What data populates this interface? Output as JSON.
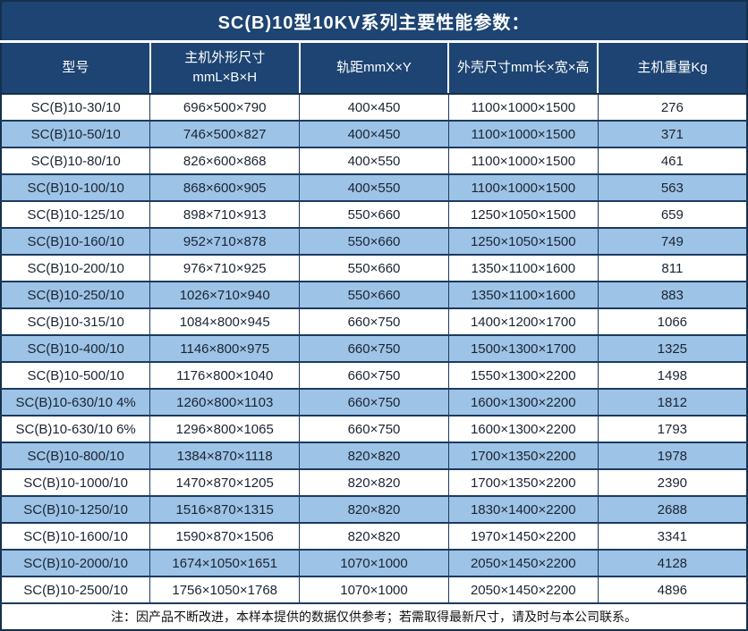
{
  "title": "SC(B)10型10KV系列主要性能参数：",
  "columns": {
    "model": "型号",
    "dims": "主机外形尺寸\nmmL×B×H",
    "track": "轨距mmX×Y",
    "shell": "外壳尺寸mm长×宽×高",
    "weight": "主机重量Kg"
  },
  "rows": [
    {
      "model": "SC(B)10-30/10",
      "dims": "696×500×790",
      "track": "400×450",
      "shell": "1100×1000×1500",
      "weight": "276"
    },
    {
      "model": "SC(B)10-50/10",
      "dims": "746×500×827",
      "track": "400×450",
      "shell": "1100×1000×1500",
      "weight": "371"
    },
    {
      "model": "SC(B)10-80/10",
      "dims": "826×600×868",
      "track": "400×550",
      "shell": "1100×1000×1500",
      "weight": "461"
    },
    {
      "model": "SC(B)10-100/10",
      "dims": "868×600×905",
      "track": "400×550",
      "shell": "1100×1000×1500",
      "weight": "563"
    },
    {
      "model": "SC(B)10-125/10",
      "dims": "898×710×913",
      "track": "550×660",
      "shell": "1250×1050×1500",
      "weight": "659"
    },
    {
      "model": "SC(B)10-160/10",
      "dims": "952×710×878",
      "track": "550×660",
      "shell": "1250×1050×1500",
      "weight": "749"
    },
    {
      "model": "SC(B)10-200/10",
      "dims": "976×710×925",
      "track": "550×660",
      "shell": "1350×1100×1600",
      "weight": "811"
    },
    {
      "model": "SC(B)10-250/10",
      "dims": "1026×710×940",
      "track": "550×660",
      "shell": "1350×1100×1600",
      "weight": "883"
    },
    {
      "model": "SC(B)10-315/10",
      "dims": "1084×800×945",
      "track": "660×750",
      "shell": "1400×1200×1700",
      "weight": "1066"
    },
    {
      "model": "SC(B)10-400/10",
      "dims": "1146×800×975",
      "track": "660×750",
      "shell": "1500×1300×1700",
      "weight": "1325"
    },
    {
      "model": "SC(B)10-500/10",
      "dims": "1176×800×1040",
      "track": "660×750",
      "shell": "1550×1300×2200",
      "weight": "1498"
    },
    {
      "model": "SC(B)10-630/10 4%",
      "dims": "1260×800×1103",
      "track": "660×750",
      "shell": "1600×1300×2200",
      "weight": "1812"
    },
    {
      "model": "SC(B)10-630/10 6%",
      "dims": "1296×800×1065",
      "track": "660×750",
      "shell": "1600×1300×2200",
      "weight": "1793"
    },
    {
      "model": "SC(B)10-800/10",
      "dims": "1384×870×1118",
      "track": "820×820",
      "shell": "1700×1350×2200",
      "weight": "1978"
    },
    {
      "model": "SC(B)10-1000/10",
      "dims": "1470×870×1205",
      "track": "820×820",
      "shell": "1700×1350×2200",
      "weight": "2390"
    },
    {
      "model": "SC(B)10-1250/10",
      "dims": "1516×870×1315",
      "track": "820×820",
      "shell": "1830×1400×2200",
      "weight": "2688"
    },
    {
      "model": "SC(B)10-1600/10",
      "dims": "1590×870×1506",
      "track": "820×820",
      "shell": "1970×1450×2200",
      "weight": "3341"
    },
    {
      "model": "SC(B)10-2000/10",
      "dims": "1674×1050×1651",
      "track": "1070×1000",
      "shell": "2050×1450×2200",
      "weight": "4128"
    },
    {
      "model": "SC(B)10-2500/10",
      "dims": "1756×1050×1768",
      "track": "1070×1000",
      "shell": "2050×1450×2200",
      "weight": "4896"
    }
  ],
  "note": "注：因产品不断改进，本样本提供的数据仅供参考；若需取得最新尺寸，请及时与本公司联系。",
  "colors": {
    "header_bg": "#1d4472",
    "header_text": "#ffffff",
    "row_alt_bg": "#9dc3e6",
    "row_bg": "#ffffff",
    "border": "#1c3a5f",
    "data_text": "#1b2433"
  }
}
